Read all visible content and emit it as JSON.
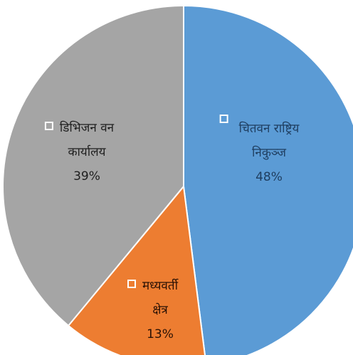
{
  "chart_data": {
    "type": "pie",
    "slices": [
      {
        "name": "चितवन राष्ट्रिय निकुञ्ज",
        "name_lines": [
          "चितवन राष्ट्रिय",
          "निकुञ्ज"
        ],
        "value": 48,
        "value_label": "48%",
        "color": "#5b9bd5",
        "label_color": "#1f3e60"
      },
      {
        "name": "मध्यवर्ती क्षेत्र",
        "name_lines": [
          "मध्यवर्ती",
          "क्षेत्र"
        ],
        "value": 13,
        "value_label": "13%",
        "color": "#ed7d31",
        "label_color": "#2b1205"
      },
      {
        "name": "डिभिजन वन कार्यालय",
        "name_lines": [
          "डिभिजन वन",
          "कार्यालय"
        ],
        "value": 39,
        "value_label": "39%",
        "color": "#a5a5a5",
        "label_color": "#1f1f1f"
      }
    ],
    "start_angle": "12 o'clock",
    "direction": "clockwise",
    "slice_border_color": "#ffffff",
    "legend_key_color": "#ffffff"
  }
}
